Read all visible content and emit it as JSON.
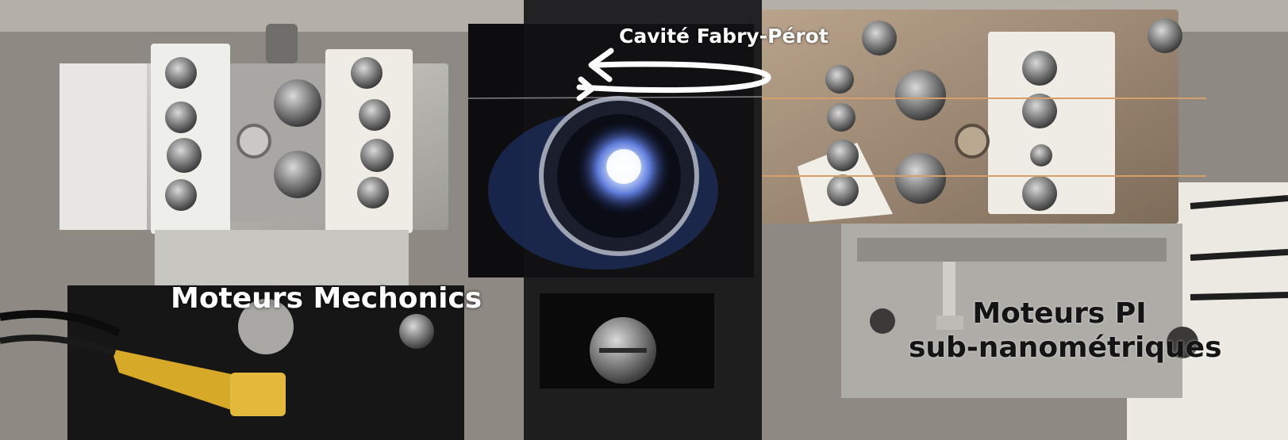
{
  "labels": {
    "cavity": "Cavité Fabry-Pérot",
    "mechonics": "Moteurs Mechonics",
    "pi_line1": "Moteurs PI",
    "pi_line2": "sub-nanométriques"
  },
  "colors": {
    "label_light": "#ffffff",
    "label_dark": "#141414",
    "cavity_glow": "#9fb8ff",
    "brass": "#d7a928"
  },
  "icons": {
    "rotation_arrow": "curved-left-arrow"
  }
}
